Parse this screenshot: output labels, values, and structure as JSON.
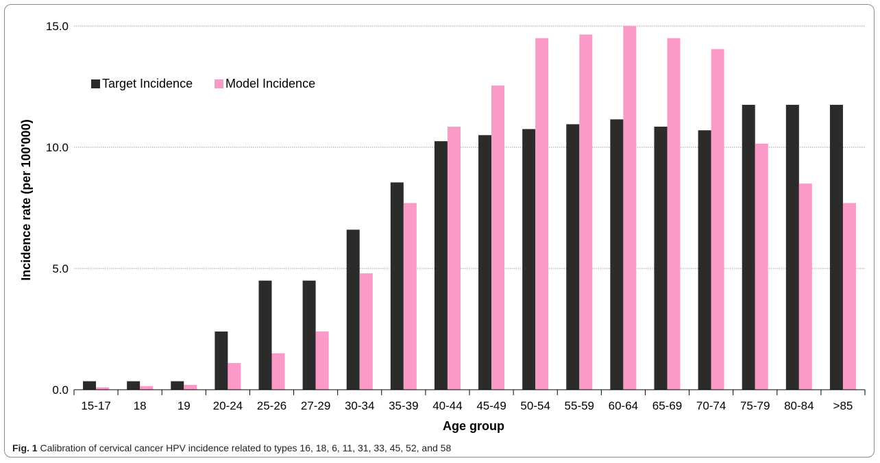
{
  "caption": {
    "label": "Fig. 1",
    "text": "Calibration of cervical cancer HPV incidence related to types 16, 18, 6, 11, 31, 33, 45, 52, and 58"
  },
  "chart_data": {
    "type": "bar",
    "title": "",
    "xlabel": "Age group",
    "ylabel": "Incidence rate (per 100'000)",
    "ylim": [
      0,
      15
    ],
    "yticks": [
      0,
      5,
      10,
      15
    ],
    "ytick_labels": [
      "0.0",
      "5.0",
      "10.0",
      "15.0"
    ],
    "grid": true,
    "legend_position": "top-left",
    "categories": [
      "15-17",
      "18",
      "19",
      "20-24",
      "25-26",
      "27-29",
      "30-34",
      "35-39",
      "40-44",
      "45-49",
      "50-54",
      "55-59",
      "60-64",
      "65-69",
      "70-74",
      "75-79",
      "80-84",
      ">85"
    ],
    "series": [
      {
        "name": "Target Incidence",
        "color": "#2b2b2b",
        "values": [
          0.35,
          0.35,
          0.35,
          2.4,
          4.5,
          4.5,
          6.6,
          8.55,
          10.25,
          10.5,
          10.75,
          10.95,
          11.15,
          10.85,
          10.7,
          11.75,
          11.75,
          11.75
        ]
      },
      {
        "name": "Model Incidence",
        "color": "#fb9ac8",
        "values": [
          0.1,
          0.15,
          0.2,
          1.1,
          1.5,
          2.4,
          4.8,
          7.7,
          10.85,
          12.55,
          14.5,
          14.65,
          15.0,
          14.5,
          14.05,
          10.15,
          8.5,
          7.7
        ]
      }
    ]
  }
}
